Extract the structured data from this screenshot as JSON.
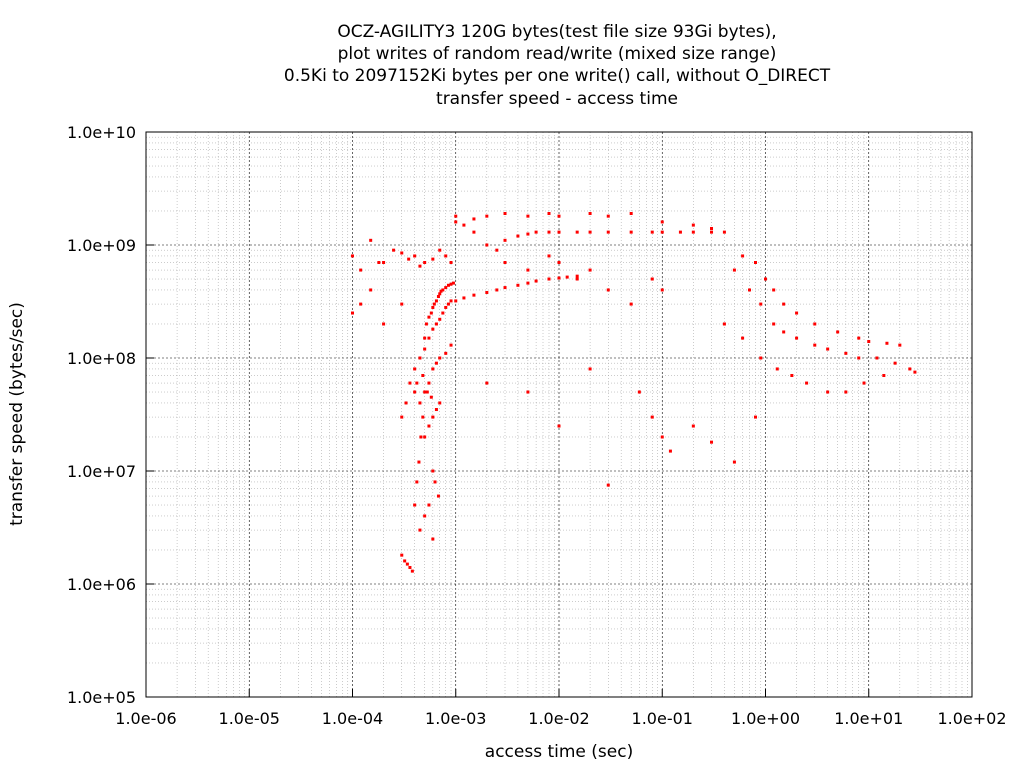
{
  "chart_data": {
    "type": "scatter",
    "title_lines": [
      "OCZ-AGILITY3 120G bytes(test file size 93Gi bytes),",
      "plot writes of random read/write (mixed size range)",
      "0.5Ki to 2097152Ki bytes per one write() call, without O_DIRECT",
      "transfer speed - access time"
    ],
    "xlabel": "access time (sec)",
    "ylabel": "transfer speed (bytes/sec)",
    "x_scale": "log",
    "y_scale": "log",
    "xlim": [
      1e-06,
      100
    ],
    "ylim": [
      100000.0,
      10000000000.0
    ],
    "x_ticks": [
      {
        "value": 1e-06,
        "label": "1.0e-06"
      },
      {
        "value": 1e-05,
        "label": "1.0e-05"
      },
      {
        "value": 0.0001,
        "label": "1.0e-04"
      },
      {
        "value": 0.001,
        "label": "1.0e-03"
      },
      {
        "value": 0.01,
        "label": "1.0e-02"
      },
      {
        "value": 0.1,
        "label": "1.0e-01"
      },
      {
        "value": 1,
        "label": "1.0e+00"
      },
      {
        "value": 10,
        "label": "1.0e+01"
      },
      {
        "value": 100,
        "label": "1.0e+02"
      }
    ],
    "y_ticks": [
      {
        "value": 100000.0,
        "label": "1.0e+05"
      },
      {
        "value": 1000000.0,
        "label": "1.0e+06"
      },
      {
        "value": 10000000.0,
        "label": "1.0e+07"
      },
      {
        "value": 100000000.0,
        "label": "1.0e+08"
      },
      {
        "value": 1000000000.0,
        "label": "1.0e+09"
      },
      {
        "value": 10000000000.0,
        "label": "1.0e+10"
      }
    ],
    "grid": true,
    "point_color": "#ff0000",
    "series": [
      {
        "x": [
          0.00015,
          0.00018,
          0.00012,
          0.0001,
          0.00025,
          0.0003,
          0.0002,
          0.00035,
          0.0004,
          0.00045,
          0.0005,
          0.0006,
          0.0007,
          0.0008,
          0.0009,
          0.0003,
          0.00032,
          0.00034,
          0.00036,
          0.00038,
          0.0004,
          0.00042,
          0.00044,
          0.00046,
          0.00048,
          0.0005,
          0.00052,
          0.00055,
          0.00058,
          0.0006,
          0.00062,
          0.00065,
          0.00068,
          0.0007,
          0.00072,
          0.00075,
          0.0008,
          0.00085,
          0.0009,
          0.00095,
          0.0004,
          0.00045,
          0.0005,
          0.00055,
          0.0006,
          0.00065,
          0.0007,
          0.00075,
          0.0008,
          0.00085,
          0.0009,
          0.00045,
          0.0005,
          0.00055,
          0.0006,
          0.00065,
          0.0007,
          0.0008,
          0.0009,
          0.0005,
          0.00055,
          0.0006,
          0.00065,
          0.0007,
          0.00042,
          0.00048,
          0.00053,
          0.00058,
          0.0006,
          0.00063,
          0.00068,
          0.00045,
          0.0005,
          0.00055,
          0.0006,
          0.0003,
          0.00033,
          0.00036,
          0.0004,
          0.0001,
          0.00012,
          0.00015,
          0.0002,
          0.0003,
          0.001,
          0.0012,
          0.0015,
          0.002,
          0.0025,
          0.003,
          0.004,
          0.005,
          0.006,
          0.008,
          0.01,
          0.012,
          0.015,
          0.001,
          0.0012,
          0.0015,
          0.002,
          0.0025,
          0.003,
          0.004,
          0.005,
          0.006,
          0.008,
          0.01,
          0.015,
          0.02,
          0.03,
          0.05,
          0.08,
          0.1,
          0.15,
          0.2,
          0.3,
          0.4,
          0.001,
          0.0015,
          0.002,
          0.003,
          0.005,
          0.008,
          0.01,
          0.02,
          0.03,
          0.05,
          0.1,
          0.2,
          0.3,
          0.003,
          0.005,
          0.008,
          0.01,
          0.015,
          0.02,
          0.03,
          0.05,
          0.08,
          0.1,
          0.6,
          0.8,
          1.0,
          1.2,
          1.5,
          2,
          3,
          5,
          8,
          10,
          15,
          20,
          0.5,
          0.7,
          0.9,
          1.2,
          1.5,
          2,
          3,
          4,
          6,
          8,
          12,
          18,
          25,
          28,
          0.4,
          0.6,
          0.9,
          1.3,
          1.8,
          2.5,
          4,
          6,
          9,
          14,
          0.08,
          0.1,
          0.12,
          0.2,
          0.3,
          0.5,
          0.8,
          0.002,
          0.005,
          0.01,
          0.02,
          0.03,
          0.06
        ],
        "y": [
          1100000000.0,
          700000000.0,
          600000000.0,
          800000000.0,
          900000000.0,
          850000000.0,
          700000000.0,
          750000000.0,
          800000000.0,
          650000000.0,
          700000000.0,
          750000000.0,
          900000000.0,
          800000000.0,
          700000000.0,
          1800000.0,
          1600000.0,
          1500000.0,
          1400000.0,
          1300000.0,
          5000000.0,
          8000000.0,
          12000000.0,
          20000000.0,
          30000000.0,
          150000000.0,
          200000000.0,
          230000000.0,
          250000000.0,
          280000000.0,
          300000000.0,
          320000000.0,
          350000000.0,
          370000000.0,
          390000000.0,
          400000000.0,
          420000000.0,
          440000000.0,
          450000000.0,
          460000000.0,
          80000000.0,
          100000000.0,
          120000000.0,
          150000000.0,
          180000000.0,
          200000000.0,
          220000000.0,
          250000000.0,
          280000000.0,
          300000000.0,
          320000000.0,
          40000000.0,
          50000000.0,
          60000000.0,
          80000000.0,
          90000000.0,
          100000000.0,
          110000000.0,
          130000000.0,
          20000000.0,
          25000000.0,
          30000000.0,
          35000000.0,
          40000000.0,
          60000000.0,
          70000000.0,
          50000000.0,
          45000000.0,
          10000000.0,
          8000000.0,
          6000000.0,
          3000000.0,
          4000000.0,
          5000000.0,
          2500000.0,
          30000000.0,
          40000000.0,
          60000000.0,
          50000000.0,
          250000000.0,
          300000000.0,
          400000000.0,
          200000000.0,
          300000000.0,
          320000000.0,
          340000000.0,
          360000000.0,
          380000000.0,
          400000000.0,
          420000000.0,
          440000000.0,
          460000000.0,
          480000000.0,
          500000000.0,
          510000000.0,
          520000000.0,
          530000000.0,
          1600000000.0,
          1500000000.0,
          1300000000.0,
          1000000000.0,
          900000000.0,
          1100000000.0,
          1200000000.0,
          1250000000.0,
          1300000000.0,
          1300000000.0,
          1300000000.0,
          1300000000.0,
          1300000000.0,
          1300000000.0,
          1300000000.0,
          1300000000.0,
          1300000000.0,
          1300000000.0,
          1300000000.0,
          1300000000.0,
          1300000000.0,
          1800000000.0,
          1700000000.0,
          1800000000.0,
          1900000000.0,
          1800000000.0,
          1900000000.0,
          1800000000.0,
          1900000000.0,
          1800000000.0,
          1900000000.0,
          1600000000.0,
          1500000000.0,
          1400000000.0,
          700000000.0,
          600000000.0,
          800000000.0,
          700000000.0,
          500000000.0,
          600000000.0,
          400000000.0,
          300000000.0,
          500000000.0,
          400000000.0,
          800000000.0,
          700000000.0,
          500000000.0,
          400000000.0,
          300000000.0,
          250000000.0,
          200000000.0,
          170000000.0,
          150000000.0,
          140000000.0,
          135000000.0,
          130000000.0,
          600000000.0,
          400000000.0,
          300000000.0,
          200000000.0,
          170000000.0,
          150000000.0,
          130000000.0,
          120000000.0,
          110000000.0,
          100000000.0,
          100000000.0,
          90000000.0,
          80000000.0,
          75000000.0,
          200000000.0,
          150000000.0,
          100000000.0,
          80000000.0,
          70000000.0,
          60000000.0,
          50000000.0,
          50000000.0,
          60000000.0,
          70000000.0,
          30000000.0,
          20000000.0,
          15000000.0,
          25000000.0,
          18000000.0,
          12000000.0,
          30000000.0,
          60000000.0,
          50000000.0,
          25000000.0,
          80000000.0,
          7500000.0,
          50000000.0
        ]
      }
    ]
  }
}
